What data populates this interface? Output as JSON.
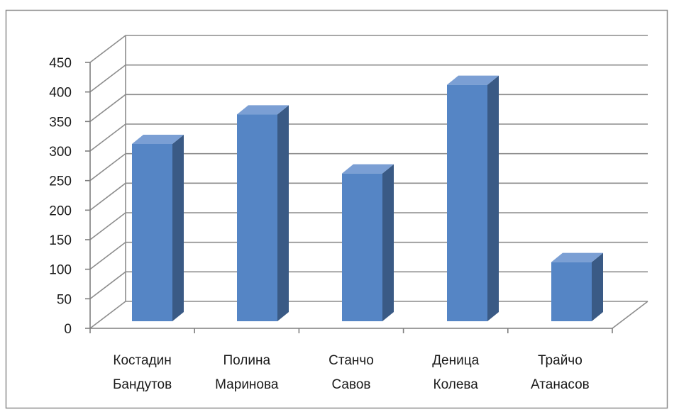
{
  "chart_data": {
    "type": "bar",
    "style": "3d-column",
    "categories": [
      [
        "Костадин",
        "Бандутов"
      ],
      [
        "Полина",
        "Маринова"
      ],
      [
        "Станчо",
        "Савов"
      ],
      [
        "Деница",
        "Колева"
      ],
      [
        "Трайчо",
        "Атанасов"
      ]
    ],
    "series": [
      {
        "values": [
          300,
          350,
          250,
          400,
          100
        ]
      }
    ],
    "yticks": [
      "0",
      "50",
      "100",
      "150",
      "200",
      "250",
      "300",
      "350",
      "400",
      "450"
    ],
    "ylim": [
      0,
      450
    ],
    "title": "",
    "xlabel": "",
    "ylabel": "",
    "grid": true,
    "legend": "none",
    "colors": {
      "bar_front": "#5585C5",
      "bar_side": "#3A5A85",
      "bar_top": "#7B9FD4",
      "gridline": "#8C8C8C",
      "axis": "#7F7F7F",
      "frame_border": "#8C8C8C"
    }
  }
}
